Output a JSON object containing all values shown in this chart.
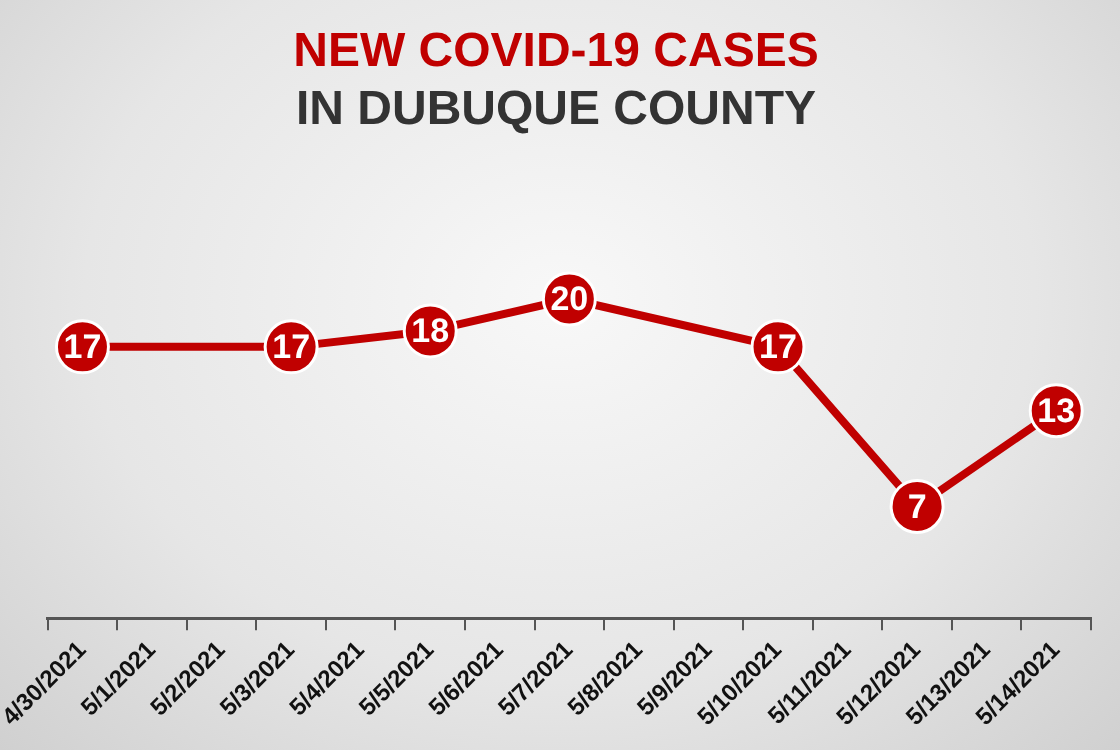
{
  "chart_data": {
    "type": "line",
    "title": "NEW COVID-19 CASES",
    "subtitle": "IN DUBUQUE COUNTY",
    "categories": [
      "4/30/2021",
      "5/1/2021",
      "5/2/2021",
      "5/3/2021",
      "5/4/2021",
      "5/5/2021",
      "5/6/2021",
      "5/7/2021",
      "5/8/2021",
      "5/9/2021",
      "5/10/2021",
      "5/11/2021",
      "5/12/2021",
      "5/13/2021",
      "5/14/2021"
    ],
    "series": [
      {
        "color": "#c00000",
        "values": [
          17,
          null,
          null,
          17,
          null,
          18,
          null,
          20,
          null,
          null,
          17,
          null,
          7,
          null,
          13
        ]
      }
    ],
    "tick_labels": "x",
    "data_labels": true,
    "marker": "circle",
    "line_style": "solid",
    "legend": false
  }
}
